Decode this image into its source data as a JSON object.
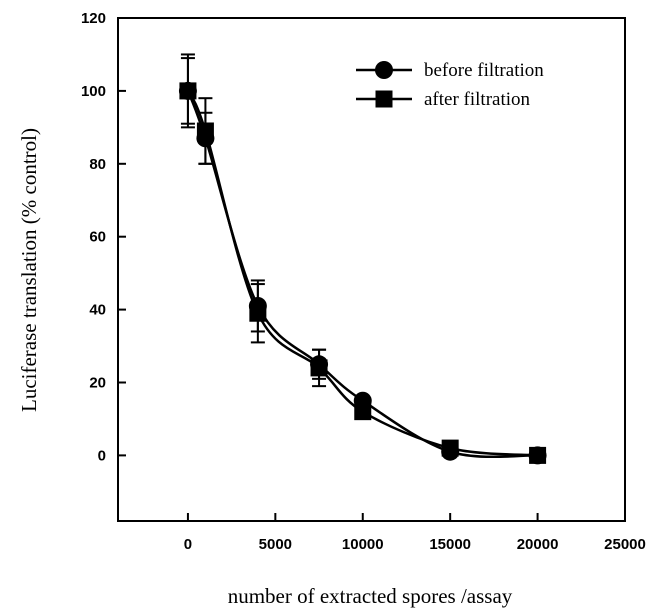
{
  "chart_data": {
    "type": "line",
    "xlabel": "number of extracted spores /assay",
    "ylabel": "Luciferase translation (% control)",
    "xlim": [
      -4000,
      25000
    ],
    "ylim": [
      -18,
      120
    ],
    "x_ticks": [
      0,
      5000,
      10000,
      15000,
      20000,
      25000
    ],
    "y_ticks": [
      0,
      20,
      40,
      60,
      80,
      100,
      120
    ],
    "grid": false,
    "legend_position": "top-right",
    "series": [
      {
        "name": "before filtration",
        "marker": "circle",
        "x": [
          0,
          1000,
          4000,
          7500,
          10000,
          15000,
          20000
        ],
        "y": [
          100,
          87,
          41,
          25,
          15,
          1,
          0
        ],
        "yerr": [
          9,
          7,
          7,
          4,
          0,
          0,
          0
        ]
      },
      {
        "name": "after filtration",
        "marker": "square",
        "x": [
          0,
          1000,
          4000,
          7500,
          10000,
          15000,
          20000
        ],
        "y": [
          100,
          89,
          39,
          24,
          12,
          2,
          0
        ],
        "yerr": [
          10,
          9,
          8,
          5,
          0,
          0,
          0
        ]
      }
    ]
  }
}
